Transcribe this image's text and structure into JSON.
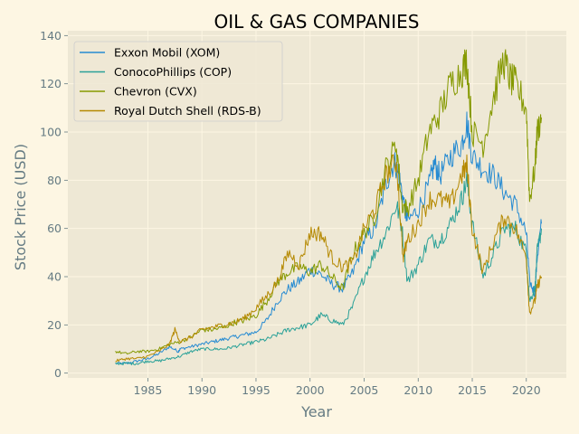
{
  "chart_data": {
    "type": "line",
    "title": "OIL & GAS COMPANIES",
    "xlabel": "Year",
    "ylabel": "Stock Price (USD)",
    "xlim": [
      1977.6,
      2023.7
    ],
    "ylim": [
      -2,
      142
    ],
    "xticks": [
      1985,
      1990,
      1995,
      2000,
      2005,
      2010,
      2015,
      2020
    ],
    "yticks": [
      0,
      20,
      40,
      60,
      80,
      100,
      120,
      140
    ],
    "grid": true,
    "legend_position": "upper-left",
    "background": "#eee8d5",
    "figure_background": "#fdf6e3",
    "series": [
      {
        "name": "Exxon Mobil (XOM)",
        "color": "#268bd2",
        "x": [
          1982.0,
          1983.0,
          1984.0,
          1985.0,
          1986.0,
          1987.0,
          1987.8,
          1988.0,
          1989.0,
          1990.0,
          1991.0,
          1992.0,
          1993.0,
          1994.0,
          1995.0,
          1996.0,
          1997.0,
          1998.0,
          1999.0,
          2000.0,
          2001.0,
          2002.0,
          2003.0,
          2004.0,
          2005.0,
          2006.0,
          2007.0,
          2007.8,
          2008.3,
          2008.8,
          2009.0,
          2010.0,
          2011.0,
          2011.5,
          2012.0,
          2013.0,
          2014.0,
          2014.5,
          2015.0,
          2016.0,
          2017.0,
          2018.0,
          2019.0,
          2020.0,
          2020.3,
          2020.8,
          2021.0,
          2021.4
        ],
        "y": [
          4,
          4,
          5,
          6,
          8,
          11,
          9,
          10,
          11,
          12,
          13,
          14,
          15,
          16,
          17,
          22,
          30,
          35,
          38,
          43,
          41,
          37,
          35,
          42,
          55,
          60,
          78,
          88,
          80,
          68,
          63,
          68,
          78,
          87,
          82,
          90,
          95,
          104,
          90,
          85,
          82,
          75,
          70,
          58,
          38,
          33,
          48,
          62
        ]
      },
      {
        "name": "ConocoPhillips (COP)",
        "color": "#2aa198",
        "x": [
          1982.0,
          1983.0,
          1984.0,
          1985.0,
          1986.0,
          1987.0,
          1988.0,
          1989.0,
          1990.0,
          1991.0,
          1992.0,
          1993.0,
          1994.0,
          1995.0,
          1996.0,
          1997.0,
          1998.0,
          1999.0,
          2000.0,
          2001.0,
          2002.0,
          2003.0,
          2004.0,
          2005.0,
          2006.0,
          2007.0,
          2008.0,
          2008.5,
          2009.0,
          2010.0,
          2011.0,
          2012.0,
          2013.0,
          2014.0,
          2014.5,
          2015.0,
          2016.0,
          2017.0,
          2018.0,
          2019.0,
          2020.0,
          2020.3,
          2020.8,
          2021.0,
          2021.4
        ],
        "y": [
          4,
          4,
          4,
          5,
          5,
          6,
          7,
          9,
          10,
          10,
          10,
          11,
          12,
          13,
          14,
          16,
          18,
          19,
          20,
          24,
          22,
          20,
          28,
          40,
          50,
          58,
          70,
          60,
          38,
          45,
          55,
          55,
          62,
          72,
          80,
          62,
          40,
          50,
          60,
          60,
          50,
          30,
          35,
          50,
          60
        ]
      },
      {
        "name": "Chevron (CVX)",
        "color": "#859900",
        "x": [
          1982.0,
          1983.0,
          1984.0,
          1985.0,
          1986.0,
          1987.0,
          1988.0,
          1989.0,
          1990.0,
          1991.0,
          1992.0,
          1993.0,
          1994.0,
          1995.0,
          1996.0,
          1997.0,
          1998.0,
          1999.0,
          2000.0,
          2001.0,
          2002.0,
          2003.0,
          2004.0,
          2005.0,
          2006.0,
          2007.0,
          2008.0,
          2008.5,
          2009.0,
          2010.0,
          2011.0,
          2012.0,
          2013.0,
          2014.0,
          2014.5,
          2015.0,
          2016.0,
          2017.0,
          2017.9,
          2018.5,
          2019.0,
          2020.0,
          2020.3,
          2020.8,
          2021.0,
          2021.4
        ],
        "y": [
          9,
          8,
          9,
          9,
          10,
          12,
          13,
          15,
          18,
          18,
          19,
          21,
          22,
          24,
          30,
          38,
          42,
          44,
          42,
          45,
          40,
          35,
          50,
          58,
          65,
          85,
          95,
          70,
          68,
          80,
          100,
          108,
          120,
          125,
          130,
          100,
          95,
          115,
          130,
          122,
          120,
          110,
          72,
          85,
          100,
          106
        ]
      },
      {
        "name": "Royal Dutch Shell (RDS-B)",
        "color": "#b58900",
        "x": [
          1982.0,
          1983.0,
          1984.0,
          1985.0,
          1986.0,
          1987.0,
          1987.5,
          1988.0,
          1989.0,
          1990.0,
          1991.0,
          1992.0,
          1993.0,
          1994.0,
          1995.0,
          1996.0,
          1997.0,
          1998.0,
          1999.0,
          2000.0,
          2001.0,
          2002.0,
          2003.0,
          2004.0,
          2005.0,
          2006.0,
          2007.0,
          2008.0,
          2008.6,
          2009.0,
          2010.0,
          2011.0,
          2012.0,
          2013.0,
          2014.0,
          2014.5,
          2015.0,
          2016.0,
          2017.0,
          2018.0,
          2019.0,
          2020.0,
          2020.3,
          2020.8,
          2021.0,
          2021.4
        ],
        "y": [
          5,
          6,
          6,
          7,
          9,
          12,
          18,
          13,
          15,
          18,
          19,
          20,
          21,
          23,
          27,
          32,
          38,
          50,
          45,
          58,
          58,
          48,
          44,
          46,
          60,
          68,
          82,
          88,
          48,
          55,
          62,
          72,
          72,
          70,
          82,
          86,
          60,
          42,
          55,
          65,
          60,
          48,
          25,
          30,
          36,
          40
        ]
      }
    ]
  }
}
